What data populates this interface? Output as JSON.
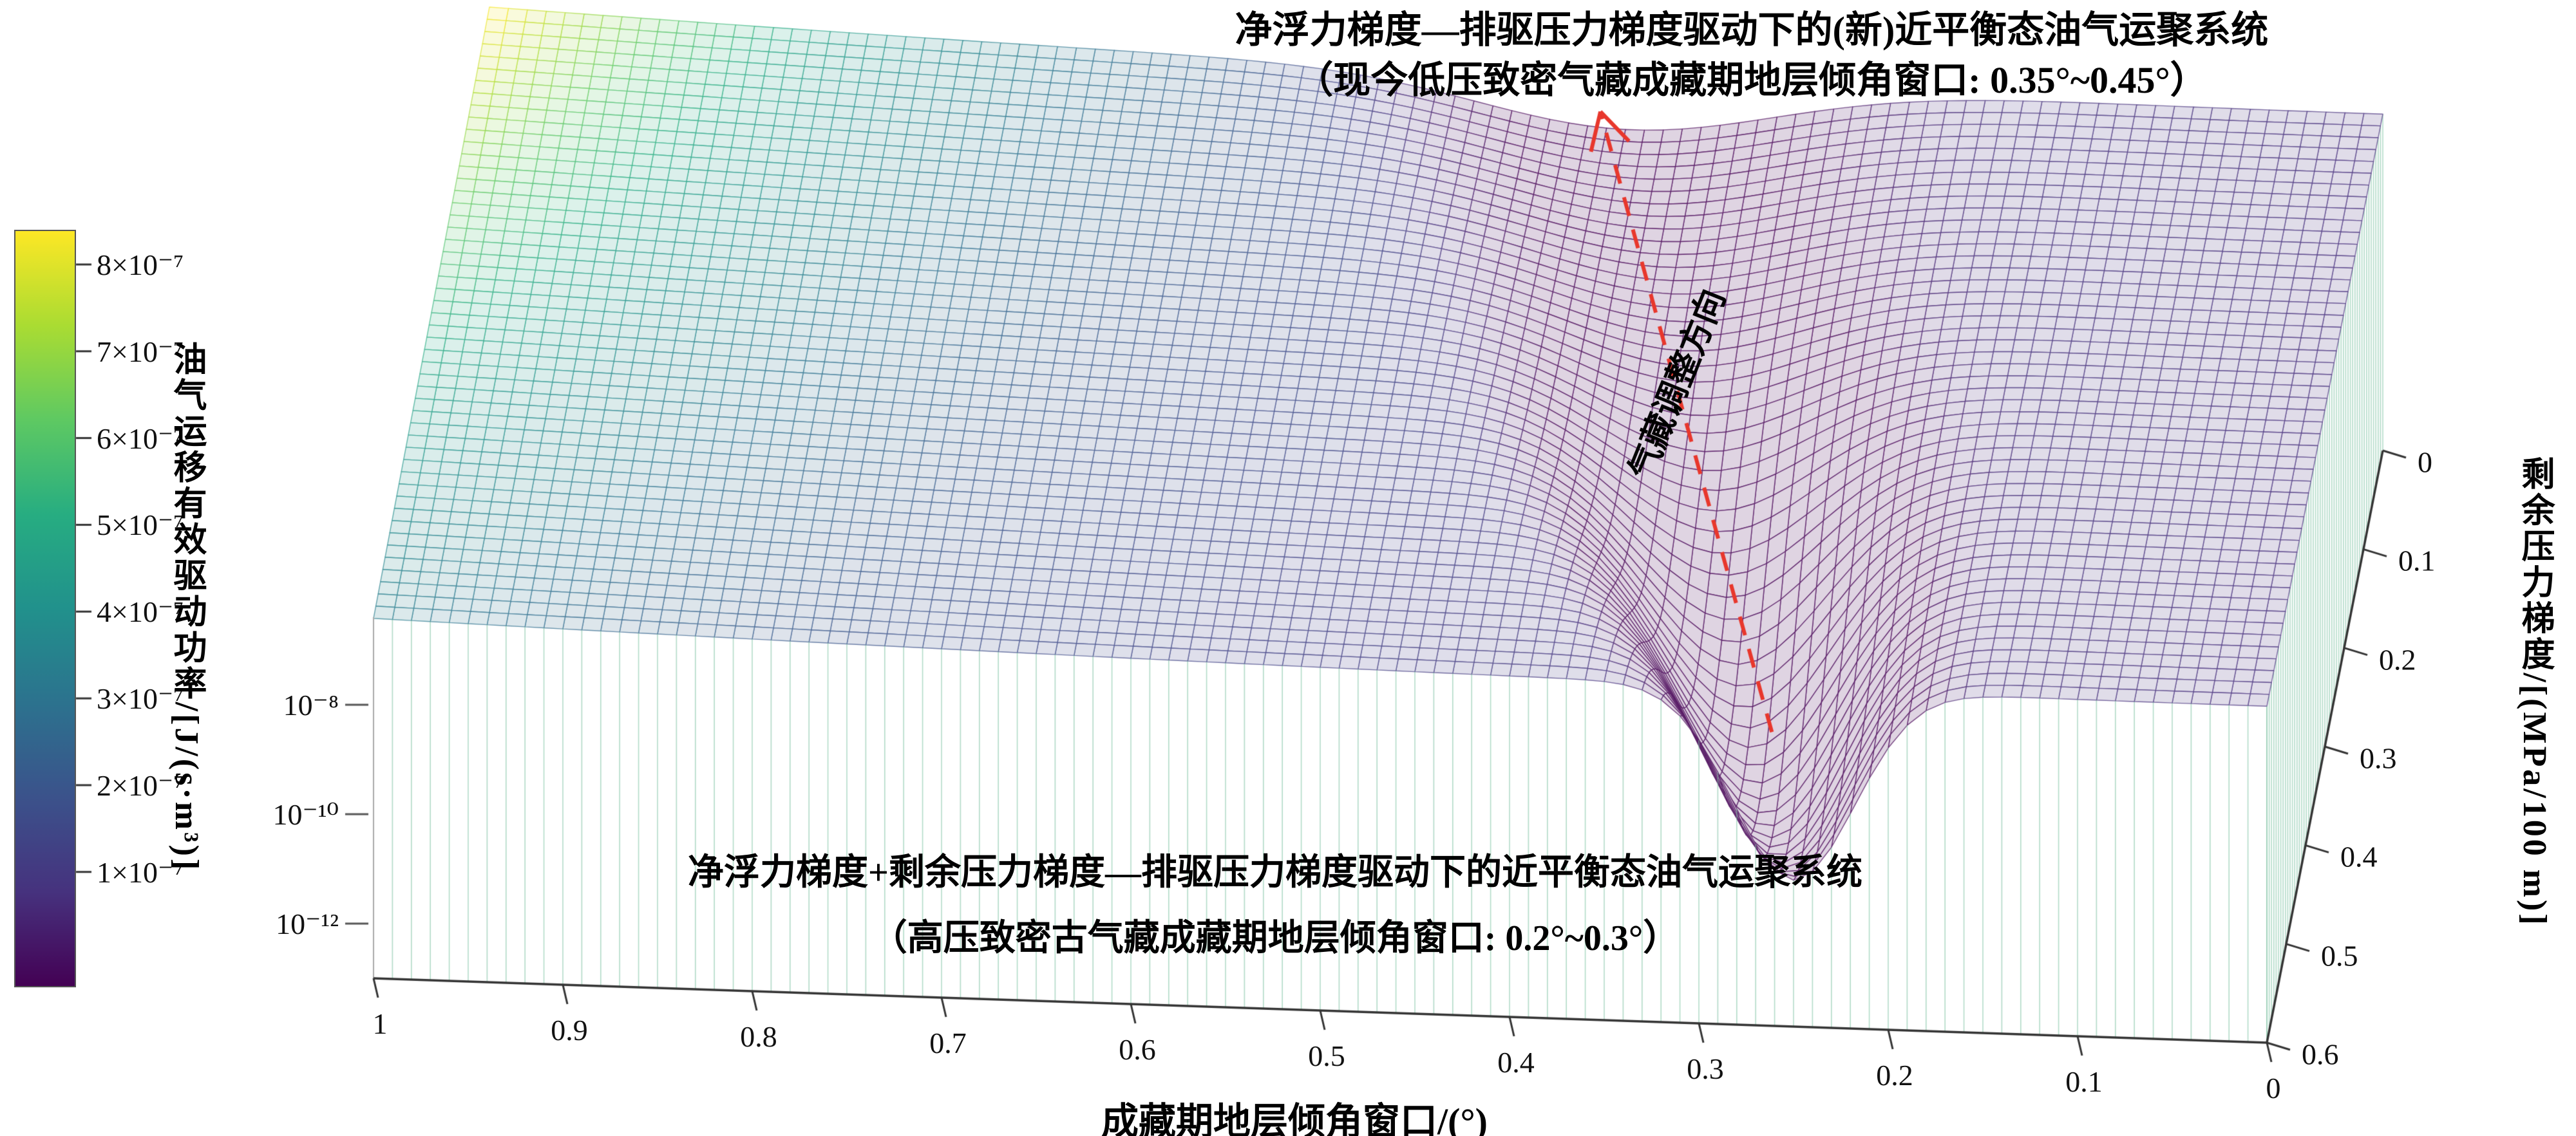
{
  "chart_data": {
    "type": "3d-surface",
    "title": {
      "line1": "净浮力梯度—排驱压力梯度驱动下的(新)近平衡态油气运聚系统",
      "line2": "（现今低压致密气藏成藏期地层倾角窗口: 0.35°~0.45°）"
    },
    "annotation_front": {
      "line1": "净浮力梯度+剩余压力梯度—排驱压力梯度驱动下的近平衡态油气运聚系统",
      "line2": "（高压致密古气藏成藏期地层倾角窗口: 0.2°~0.3°）"
    },
    "adjustment_arrow": {
      "label": "气藏调整方向",
      "color": "#e8372c",
      "from_dip_angle_window": 0.25,
      "to_dip_angle_window": 0.4,
      "from_residual_pressure": 0.6,
      "to_residual_pressure": 0.0
    },
    "x_axis": {
      "label": "成藏期地层倾角窗口/(°)",
      "tick_labels": [
        "1",
        "0.9",
        "0.8",
        "0.7",
        "0.6",
        "0.5",
        "0.4",
        "0.3",
        "0.2",
        "0.1",
        "0"
      ],
      "tick_values": [
        1,
        0.9,
        0.8,
        0.7,
        0.6,
        0.5,
        0.4,
        0.3,
        0.2,
        0.1,
        0
      ],
      "range": [
        0,
        1
      ],
      "direction": "1 at left, 0 at right"
    },
    "y_axis": {
      "label": "剩余压力梯度/[(MPa/100 m)]",
      "tick_labels": [
        "0",
        "0.1",
        "0.2",
        "0.3",
        "0.4",
        "0.5",
        "0.6"
      ],
      "tick_values": [
        0,
        0.1,
        0.2,
        0.3,
        0.4,
        0.5,
        0.6
      ],
      "range": [
        0,
        0.6
      ],
      "direction": "0 at back, 0.6 at front"
    },
    "z_axis": {
      "scale": "log",
      "tick_labels": [
        "10⁻⁸",
        "10⁻¹⁰",
        "10⁻¹²"
      ],
      "tick_values": [
        -8,
        -10,
        -12
      ],
      "range_decades": [
        -13,
        -6
      ]
    },
    "colorbar": {
      "label": "油气运移有效驱动功率/[J/(s·m³)]",
      "tick_labels": [
        "1×10⁻⁷",
        "2×10⁻⁷",
        "3×10⁻⁷",
        "4×10⁻⁷",
        "5×10⁻⁷",
        "6×10⁻⁷",
        "7×10⁻⁷",
        "8×10⁻⁷"
      ],
      "tick_values": [
        1,
        2,
        3,
        4,
        5,
        6,
        7,
        8
      ],
      "unit": "×10⁻⁷ J/(s·m³)",
      "colormap": "viridis",
      "viridis_stops": [
        "#440154",
        "#46327e",
        "#3b528b",
        "#2c728e",
        "#21918c",
        "#27ad81",
        "#5ec962",
        "#aadc32",
        "#fde725"
      ],
      "color_range": [
        0.5,
        8.4
      ]
    },
    "surface_model": {
      "description": "log10 effective driving power surface over dip-angle window (x) and residual pressure gradient (y): near-flat plateau (~1.5×10⁻⁷, rising to ~8×10⁻⁷ toward x=1, y=0) cut by a narrow valley plunging toward 10⁻¹²; valley center migrates from ~0.25° at high residual pressure (paleo high-pressure system, front) to ~0.40° at zero residual pressure (present-day low-pressure system, back)",
      "grid": [
        100,
        50
      ],
      "z_floor": -12.9,
      "plateau": {
        "base": -6.85,
        "ridge_amplitude": 0.78,
        "ridge_power": 1.8,
        "ridge_front_damping": 0.45
      },
      "valley": {
        "center_back": 0.4,
        "center_front": 0.25,
        "width_back": 0.11,
        "width_front": 0.045,
        "depth_base": 0.9,
        "depth_amplitude": 3.4,
        "depth_peak": 0.84,
        "depth_sigma": 0.22
      }
    },
    "mesh_style": {
      "curtain_color": "rgba(122,193,160,0.58)",
      "axis_color": "#333333"
    }
  }
}
